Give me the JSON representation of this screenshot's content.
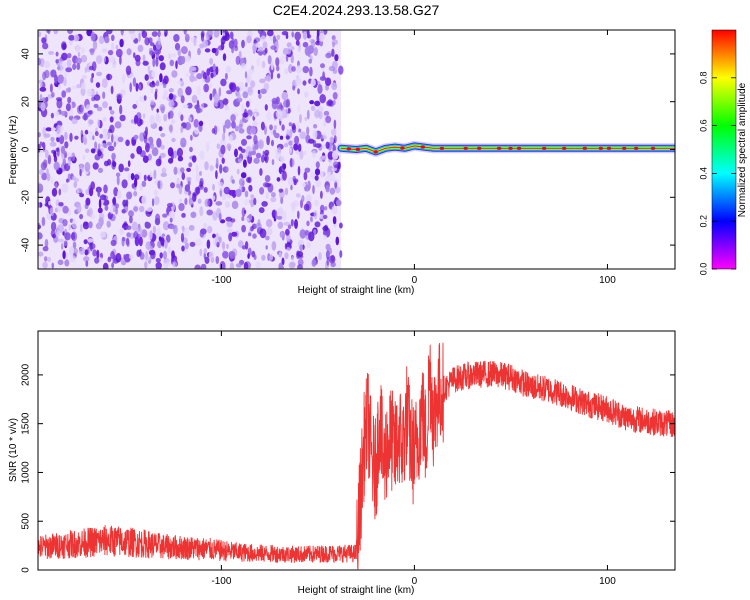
{
  "title": "C2E4.2024.293.13.58.G27",
  "colors": {
    "snr_line": "#ee3333",
    "frame": "#000000",
    "scatter": "#6a1ee0",
    "scatter_light": "#d9c6f7"
  },
  "chart_data": [
    {
      "type": "heatmap",
      "title": "C2E4.2024.293.13.58.G27",
      "xlabel": "Height of straight line (km)",
      "ylabel": "Frequency (Hz)",
      "xlim": [
        -195,
        135
      ],
      "ylim": [
        -50,
        50
      ],
      "x_ticks": [
        -100,
        0,
        100
      ],
      "x_tick_labels": [
        "-100",
        "0",
        "100"
      ],
      "y_ticks": [
        -40,
        -20,
        0,
        20,
        40
      ],
      "y_tick_labels": [
        "-40",
        "-20",
        "0",
        "20",
        "40"
      ],
      "grid": false,
      "noise_region_x": [
        -195,
        -38
      ],
      "signal_line": {
        "x": [
          -38,
          -30,
          -25,
          -20,
          -15,
          -10,
          -5,
          0,
          5,
          10,
          20,
          40,
          60,
          80,
          100,
          120,
          135
        ],
        "frequency": [
          0.5,
          0.0,
          0.5,
          -1.0,
          0.5,
          1.0,
          0.5,
          1.5,
          1.0,
          0.5,
          0.5,
          0.5,
          0.5,
          0.5,
          0.5,
          0.5,
          0.5
        ]
      },
      "colorbar": {
        "label": "Normalized spectral amplitude",
        "range": [
          0,
          1
        ],
        "ticks": [
          0.0,
          0.2,
          0.4,
          0.6,
          0.8
        ],
        "tick_labels": [
          "0.0",
          "0.2",
          "0.4",
          "0.6",
          "0.8"
        ],
        "colors": [
          "#ff00ff",
          "#0000ff",
          "#00ffff",
          "#00ff00",
          "#ffff00",
          "#ff0000"
        ]
      }
    },
    {
      "type": "line",
      "xlabel": "Height of straight line (km)",
      "ylabel": "SNR (10 * v/v)",
      "xlim": [
        -195,
        135
      ],
      "ylim": [
        0,
        2450
      ],
      "x_ticks": [
        -100,
        0,
        100
      ],
      "x_tick_labels": [
        "-100",
        "0",
        "100"
      ],
      "y_ticks": [
        0,
        500,
        1000,
        1500,
        2000
      ],
      "y_tick_labels": [
        "0",
        "500",
        "1000",
        "1500",
        "2000"
      ],
      "grid": false,
      "series": [
        {
          "x": [
            -195,
            -180,
            -170,
            -160,
            -150,
            -140,
            -130,
            -120,
            -110,
            -100,
            -90,
            -80,
            -70,
            -60,
            -50,
            -40,
            -30,
            -26,
            -24,
            -22,
            -20,
            -18,
            -16,
            -14,
            -12,
            -10,
            -8,
            -6,
            -4,
            -2,
            0,
            2,
            4,
            6,
            8,
            10,
            12,
            15,
            20,
            25,
            30,
            40,
            50,
            60,
            70,
            80,
            90,
            100,
            110,
            120,
            130,
            135
          ],
          "y": [
            230,
            260,
            280,
            300,
            290,
            270,
            240,
            230,
            220,
            200,
            180,
            170,
            165,
            160,
            165,
            170,
            170,
            1300,
            1550,
            1100,
            1000,
            1600,
            1050,
            1300,
            1350,
            1200,
            1400,
            1250,
            1600,
            1300,
            1150,
            1400,
            1650,
            1300,
            2050,
            1550,
            1800,
            1850,
            1950,
            1980,
            2000,
            2010,
            1980,
            1880,
            1850,
            1780,
            1700,
            1650,
            1560,
            1530,
            1500,
            1490
          ]
        }
      ]
    }
  ]
}
